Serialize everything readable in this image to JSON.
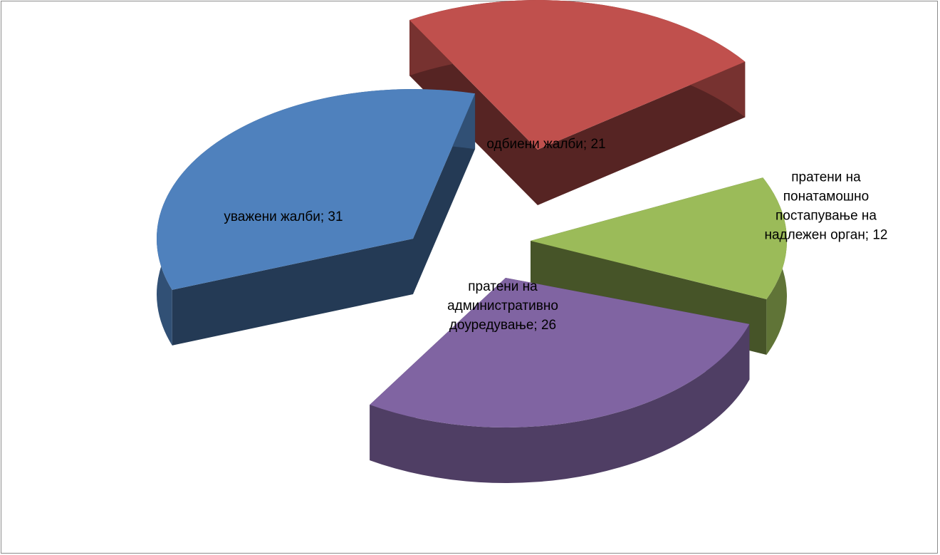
{
  "chart_data": {
    "type": "pie",
    "style": "3d-exploded",
    "title": "",
    "legend": "none",
    "slices": [
      {
        "label": "уважени жалби",
        "value": 31,
        "color": "#4f81bd",
        "label_lines": [
          "уважени жалби; 31"
        ]
      },
      {
        "label": "одбиени жалби",
        "value": 21,
        "color": "#c0504d",
        "label_lines": [
          "одбиени жалби; 21"
        ]
      },
      {
        "label": "пратени на понатамошно постапување на надлежен орган",
        "value": 12,
        "color": "#9bbb59",
        "label_lines": [
          "пратени на",
          "понатамошно",
          "постапување на",
          "надлежен орган; 12"
        ]
      },
      {
        "label": "пратени на административно доуредување",
        "value": 26,
        "color": "#8064a2",
        "label_lines": [
          "пратени на",
          "административно",
          "доуредување; 26"
        ]
      }
    ]
  }
}
